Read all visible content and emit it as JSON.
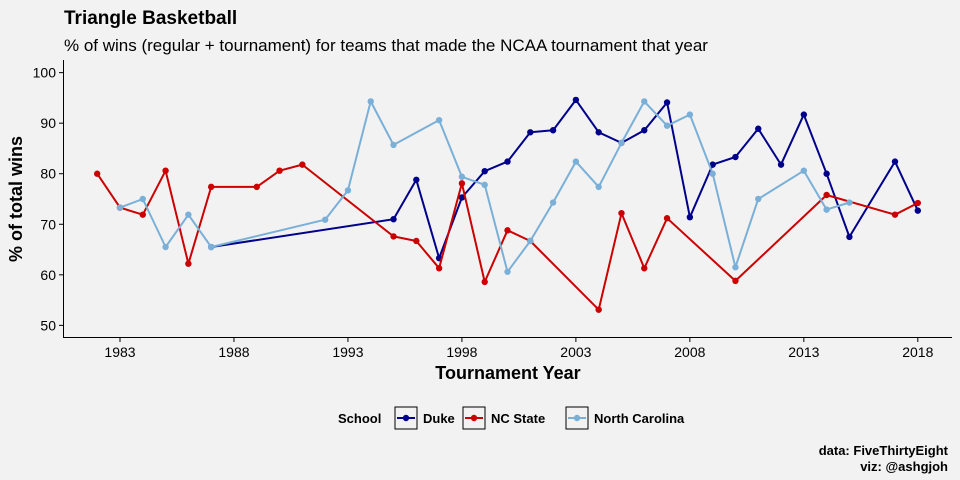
{
  "chart_data": {
    "type": "line",
    "title": "Triangle Basketball",
    "subtitle": "% of wins (regular + tournament) for teams that made the NCAA tournament that year",
    "xlabel": "Tournament Year",
    "ylabel": "% of total wins",
    "xlim": [
      1980.5,
      2019.5
    ],
    "ylim": [
      47.5,
      102.5
    ],
    "x_ticks": [
      1983,
      1988,
      1993,
      1998,
      2003,
      2008,
      2013,
      2018
    ],
    "y_ticks": [
      50,
      60,
      70,
      80,
      90,
      100
    ],
    "grid": false,
    "legend_title": "School",
    "legend_position": "bottom",
    "caption": [
      "data: FiveThirtyEight",
      "viz: @ashgjoh"
    ],
    "series": [
      {
        "name": "Duke",
        "color": "#00008b",
        "points": [
          [
            1987,
            65.5
          ],
          [
            1995,
            71
          ],
          [
            1996,
            78.8
          ],
          [
            1997,
            63.3
          ],
          [
            1998,
            75.3
          ],
          [
            1999,
            80.5
          ],
          [
            2000,
            82.4
          ],
          [
            2001,
            88.2
          ],
          [
            2002,
            88.6
          ],
          [
            2003,
            94.6
          ],
          [
            2004,
            88.2
          ],
          [
            2005,
            86.1
          ],
          [
            2006,
            88.6
          ],
          [
            2007,
            94.1
          ],
          [
            2008,
            71.4
          ],
          [
            2009,
            81.8
          ],
          [
            2010,
            83.3
          ],
          [
            2011,
            88.9
          ],
          [
            2012,
            81.8
          ],
          [
            2013,
            91.7
          ],
          [
            2014,
            80
          ],
          [
            2015,
            67.5
          ],
          [
            2017,
            82.4
          ],
          [
            2018,
            72.7
          ]
        ]
      },
      {
        "name": "NC State",
        "color": "#cc0000",
        "points": [
          [
            1982,
            80
          ],
          [
            1983,
            73.3
          ],
          [
            1984,
            71.9
          ],
          [
            1985,
            80.6
          ],
          [
            1986,
            62.2
          ],
          [
            1987,
            77.4
          ],
          [
            1989,
            77.4
          ],
          [
            1990,
            80.6
          ],
          [
            1991,
            81.8
          ],
          [
            1995,
            67.6
          ],
          [
            1996,
            66.7
          ],
          [
            1997,
            61.3
          ],
          [
            1998,
            78.1
          ],
          [
            1999,
            58.6
          ],
          [
            2000,
            68.8
          ],
          [
            2001,
            66.7
          ],
          [
            2004,
            53.1
          ],
          [
            2005,
            72.2
          ],
          [
            2006,
            61.3
          ],
          [
            2007,
            71.2
          ],
          [
            2010,
            58.8
          ],
          [
            2014,
            75.8
          ],
          [
            2017,
            71.9
          ],
          [
            2018,
            74.2
          ]
        ]
      },
      {
        "name": "North Carolina",
        "color": "#7ab0d8",
        "points": [
          [
            1983,
            73.3
          ],
          [
            1984,
            75
          ],
          [
            1985,
            65.5
          ],
          [
            1986,
            71.9
          ],
          [
            1987,
            65.5
          ],
          [
            1992,
            70.9
          ],
          [
            1993,
            76.7
          ],
          [
            1994,
            94.3
          ],
          [
            1995,
            85.7
          ],
          [
            1997,
            90.6
          ],
          [
            1998,
            79.4
          ],
          [
            1999,
            77.8
          ],
          [
            2000,
            60.6
          ],
          [
            2001,
            66.7
          ],
          [
            2002,
            74.3
          ],
          [
            2003,
            82.4
          ],
          [
            2004,
            77.4
          ],
          [
            2005,
            86.1
          ],
          [
            2006,
            94.3
          ],
          [
            2007,
            89.5
          ],
          [
            2008,
            91.7
          ],
          [
            2009,
            80
          ],
          [
            2010,
            61.5
          ],
          [
            2011,
            75
          ],
          [
            2013,
            80.6
          ],
          [
            2014,
            72.9
          ],
          [
            2015,
            74.3
          ]
        ]
      }
    ]
  }
}
